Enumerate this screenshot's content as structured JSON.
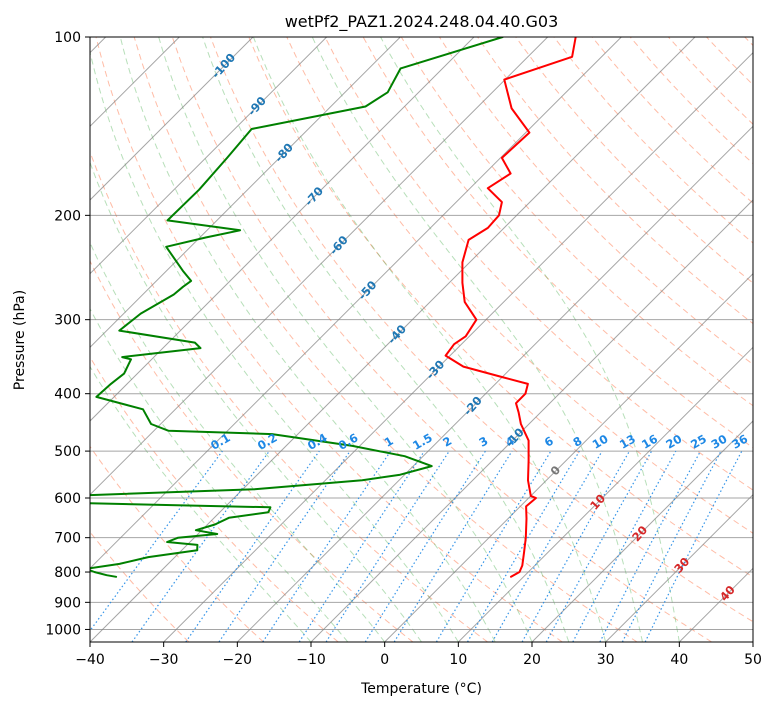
{
  "chart_data": {
    "type": "skew-t log-p sounding",
    "title": "wetPf2_PAZ1.2024.248.04.40.G03",
    "xlabel": "Temperature (°C)",
    "ylabel": "Pressure (hPa)",
    "xlim": [
      -40,
      50
    ],
    "ylim": [
      1050,
      100
    ],
    "y_scale": "log",
    "grid": true,
    "x_ticks": [
      "−40",
      "−30",
      "−20",
      "−10",
      "0",
      "10",
      "20",
      "30",
      "40",
      "50"
    ],
    "x_tick_values": [
      -40,
      -30,
      -20,
      -10,
      0,
      10,
      20,
      30,
      40,
      50
    ],
    "y_ticks": [
      "100",
      "200",
      "300",
      "400",
      "500",
      "600",
      "700",
      "800",
      "900",
      "1000"
    ],
    "y_tick_values": [
      100,
      200,
      300,
      400,
      500,
      600,
      700,
      800,
      900,
      1000
    ],
    "temperature_color": "#ff0000",
    "dewpoint_color": "#008000",
    "isotherm_color": "#808080",
    "dry_adiabat_color": "#ff6a3a",
    "moist_adiabat_color": "#4caf50",
    "mixing_ratio_color": "#1e88e5",
    "isotherm_label_color": "#1f77b4",
    "saturation_label_color": "#1e88e5",
    "temperature_label_color": "#d62728",
    "isotherm_labels": [
      {
        "text": "-100",
        "t": -100,
        "p": 112
      },
      {
        "text": "-90",
        "t": -90,
        "p": 131
      },
      {
        "text": "-80",
        "t": -80,
        "p": 157
      },
      {
        "text": "-70",
        "t": -70,
        "p": 186
      },
      {
        "text": "-60",
        "t": -60,
        "p": 225
      },
      {
        "text": "-50",
        "t": -50,
        "p": 268
      },
      {
        "text": "-40",
        "t": -40,
        "p": 318
      },
      {
        "text": "-30",
        "t": -30,
        "p": 365
      },
      {
        "text": "-20",
        "t": -20,
        "p": 420
      },
      {
        "text": "-10",
        "t": -10,
        "p": 475
      }
    ],
    "mixing_ratio_labels": [
      {
        "text": "0.1",
        "w": 0.1
      },
      {
        "text": "0.2",
        "w": 0.2
      },
      {
        "text": "0.4",
        "w": 0.4
      },
      {
        "text": "0.6",
        "w": 0.6
      },
      {
        "text": "1",
        "w": 1
      },
      {
        "text": "1.5",
        "w": 1.5
      },
      {
        "text": "2",
        "w": 2
      },
      {
        "text": "3",
        "w": 3
      },
      {
        "text": "4",
        "w": 4
      },
      {
        "text": "6",
        "w": 6
      },
      {
        "text": "8",
        "w": 8
      },
      {
        "text": "10",
        "w": 10
      },
      {
        "text": "13",
        "w": 13
      },
      {
        "text": "16",
        "w": 16
      },
      {
        "text": "20",
        "w": 20
      },
      {
        "text": "25",
        "w": 25
      },
      {
        "text": "30",
        "w": 30
      },
      {
        "text": "36",
        "w": 36
      }
    ],
    "zero_label": {
      "text": "0",
      "t": 0,
      "p": 540
    },
    "temp_labels": [
      {
        "text": "10",
        "t": 10,
        "p": 610
      },
      {
        "text": "20",
        "t": 20,
        "p": 690
      },
      {
        "text": "30",
        "t": 30,
        "p": 780
      },
      {
        "text": "40",
        "t": 40,
        "p": 870
      }
    ],
    "series": [
      {
        "id": "temperature",
        "points": [
          [
            100,
            -56.2
          ],
          [
            108,
            -54.0
          ],
          [
            118,
            -60.1
          ],
          [
            132,
            -55.2
          ],
          [
            145,
            -49.5
          ],
          [
            160,
            -49.8
          ],
          [
            170,
            -46.5
          ],
          [
            180,
            -47.6
          ],
          [
            190,
            -43.8
          ],
          [
            200,
            -42.4
          ],
          [
            210,
            -42.2
          ],
          [
            220,
            -43.2
          ],
          [
            240,
            -41.0
          ],
          [
            260,
            -38.2
          ],
          [
            280,
            -35.3
          ],
          [
            300,
            -31.3
          ],
          [
            320,
            -30.5
          ],
          [
            330,
            -31.0
          ],
          [
            345,
            -30.6
          ],
          [
            360,
            -26.7
          ],
          [
            375,
            -20.0
          ],
          [
            385,
            -15.6
          ],
          [
            400,
            -14.6
          ],
          [
            415,
            -14.6
          ],
          [
            430,
            -13.0
          ],
          [
            450,
            -11.1
          ],
          [
            480,
            -7.8
          ],
          [
            520,
            -5.0
          ],
          [
            560,
            -2.5
          ],
          [
            595,
            0.0
          ],
          [
            600,
            1.0
          ],
          [
            620,
            0.8
          ],
          [
            650,
            2.5
          ],
          [
            700,
            5.0
          ],
          [
            740,
            6.7
          ],
          [
            780,
            8.3
          ],
          [
            800,
            8.8
          ],
          [
            815,
            8.3
          ]
        ]
      },
      {
        "id": "dewpoint",
        "points": [
          [
            100,
            -66.1
          ],
          [
            113,
            -75.7
          ],
          [
            124,
            -74.2
          ],
          [
            131,
            -75.3
          ],
          [
            143,
            -87.7
          ],
          [
            160,
            -87.1
          ],
          [
            181,
            -86.6
          ],
          [
            204,
            -86.7
          ],
          [
            212,
            -75.5
          ],
          [
            218,
            -79.2
          ],
          [
            226,
            -83.3
          ],
          [
            248,
            -77.8
          ],
          [
            258,
            -75.3
          ],
          [
            264,
            -75.6
          ],
          [
            272,
            -75.8
          ],
          [
            293,
            -77.7
          ],
          [
            313,
            -78.3
          ],
          [
            328,
            -66.4
          ],
          [
            335,
            -64.9
          ],
          [
            347,
            -74.3
          ],
          [
            350,
            -72.8
          ],
          [
            370,
            -71.8
          ],
          [
            385,
            -72.2
          ],
          [
            405,
            -72.4
          ],
          [
            425,
            -64.4
          ],
          [
            450,
            -61.3
          ],
          [
            462,
            -58.0
          ],
          [
            468,
            -43.5
          ],
          [
            490,
            -31.0
          ],
          [
            510,
            -22.5
          ],
          [
            530,
            -17.5
          ],
          [
            548,
            -20.6
          ],
          [
            560,
            -25.0
          ],
          [
            580,
            -38.4
          ],
          [
            600,
            -70.7
          ],
          [
            610,
            -64.6
          ],
          [
            622,
            -33.8
          ],
          [
            634,
            -33.4
          ],
          [
            648,
            -38.0
          ],
          [
            665,
            -39.0
          ],
          [
            680,
            -40.8
          ],
          [
            690,
            -37.4
          ],
          [
            700,
            -42.2
          ],
          [
            712,
            -43.1
          ],
          [
            720,
            -38.6
          ],
          [
            735,
            -37.9
          ],
          [
            755,
            -43.6
          ],
          [
            775,
            -46.6
          ],
          [
            790,
            -50.5
          ],
          [
            800,
            -48.9
          ],
          [
            810,
            -46.8
          ],
          [
            815,
            -45.3
          ]
        ]
      }
    ]
  }
}
